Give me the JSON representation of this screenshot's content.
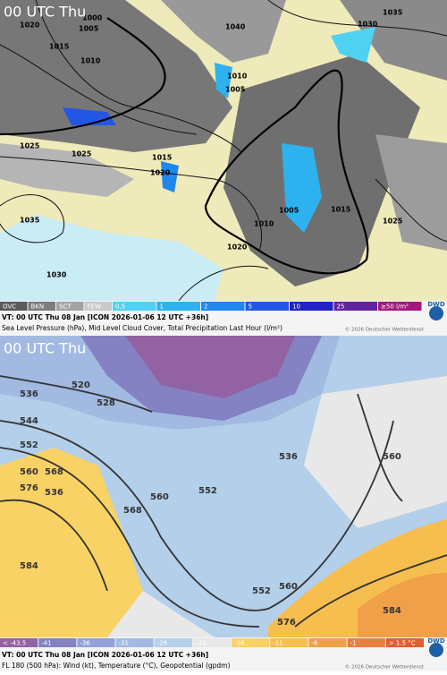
{
  "panels": [
    {
      "time_label": "00 UTC Thu",
      "contour_labels": [
        "1000",
        "1005",
        "1010",
        "1015",
        "1020",
        "1025",
        "1025",
        "1020",
        "1015",
        "1035",
        "1030",
        "1020",
        "1010",
        "1005",
        "1015",
        "1025",
        "1030",
        "1035",
        "1040",
        "1010",
        "1005"
      ],
      "legend": [
        {
          "label": "OVC",
          "color": "#5a5a5a"
        },
        {
          "label": "BKN",
          "color": "#7d7d7d"
        },
        {
          "label": "SCT",
          "color": "#a3a3a3"
        },
        {
          "label": "FEW",
          "color": "#c9c9c9"
        },
        {
          "label": "0.5",
          "color": "#4fd2f2"
        },
        {
          "label": "1",
          "color": "#2eb2ef"
        },
        {
          "label": "2",
          "color": "#2186ee"
        },
        {
          "label": "5",
          "color": "#2456e6"
        },
        {
          "label": "10",
          "color": "#2022c6"
        },
        {
          "label": "25",
          "color": "#62239e"
        },
        {
          "label": "≥50 l/m²",
          "color": "#a2187c"
        }
      ],
      "caption": "VT: 00 UTC Thu   08 Jan [ICON 2026-01-06 12 UTC +36h]",
      "description": "Sea Level Pressure (hPa), Mid Level Cloud Cover, Total Precipitation Last Hour (l/m²)",
      "copyright": "© 2026 Deutscher Wetterdienst",
      "logo": "DWD"
    },
    {
      "time_label": "00 UTC Thu",
      "contour_labels": [
        "520",
        "528",
        "536",
        "544",
        "552",
        "560",
        "568",
        "576",
        "536",
        "584",
        "560",
        "552",
        "568",
        "560",
        "552",
        "560",
        "576",
        "584",
        "536"
      ],
      "legend": [
        {
          "label": "< -43.5",
          "color": "#9262a2"
        },
        {
          "label": "-41",
          "color": "#8482c2"
        },
        {
          "label": "-36",
          "color": "#92a2d8"
        },
        {
          "label": "-31",
          "color": "#a2bae2"
        },
        {
          "label": "-26",
          "color": "#b4cfea"
        },
        {
          "label": "-21",
          "color": "#e8e8e8"
        },
        {
          "label": "-16",
          "color": "#f8d264"
        },
        {
          "label": "-11",
          "color": "#f6be4e"
        },
        {
          "label": "-6",
          "color": "#f0a048"
        },
        {
          "label": "-1",
          "color": "#e88040"
        },
        {
          "label": "> 1.5 °C",
          "color": "#e06032"
        }
      ],
      "caption": "VT: 00 UTC Thu   08 Jan [ICON 2026-01-06 12 UTC +36h]",
      "description": "FL 180 (500 hPa): Wind (kt), Temperature (°C), Geopotential (gpdm)",
      "copyright": "© 2026 Deutscher Wetterdienst",
      "logo": "DWD"
    }
  ]
}
